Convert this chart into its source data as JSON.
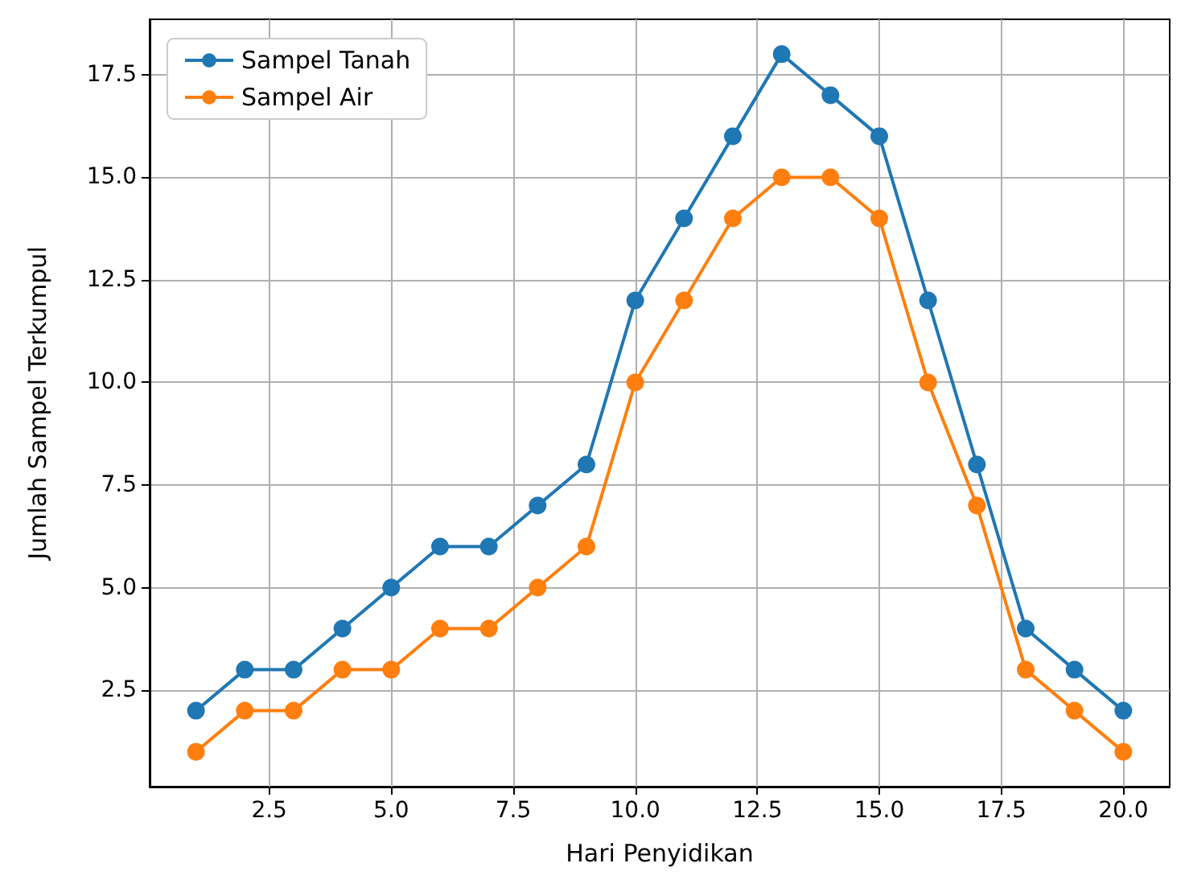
{
  "chart_data": {
    "type": "line",
    "xlabel": "Hari Penyidikan",
    "ylabel": "Jumlah Sampel Terkumpul",
    "x": [
      1,
      2,
      3,
      4,
      5,
      6,
      7,
      8,
      9,
      10,
      11,
      12,
      13,
      14,
      15,
      16,
      17,
      18,
      19,
      20
    ],
    "series": [
      {
        "name": "Sampel Tanah",
        "color": "#1f77b4",
        "values": [
          2,
          3,
          3,
          4,
          5,
          6,
          6,
          7,
          8,
          12,
          14,
          16,
          18,
          17,
          16,
          12,
          8,
          4,
          3,
          2
        ]
      },
      {
        "name": "Sampel Air",
        "color": "#ff7f0e",
        "values": [
          1,
          2,
          2,
          3,
          3,
          4,
          4,
          5,
          6,
          10,
          12,
          14,
          15,
          15,
          14,
          10,
          7,
          3,
          2,
          1
        ]
      }
    ],
    "xlim": [
      0.05,
      20.95
    ],
    "xticks": [
      2.5,
      {
        "value": 5,
        "label": "5.0"
      },
      7.5,
      {
        "value": 10,
        "label": "10.0"
      },
      12.5,
      {
        "value": 15,
        "label": "15.0"
      },
      17.5,
      {
        "value": 20,
        "label": "20.0"
      }
    ],
    "ylim": [
      0.15,
      18.85
    ],
    "yticks": [
      2.5,
      {
        "value": 5,
        "label": "5.0"
      },
      7.5,
      {
        "value": 10,
        "label": "10.0"
      },
      12.5,
      {
        "value": 15,
        "label": "15.0"
      },
      17.5
    ],
    "grid": true,
    "legend": "top left",
    "marker": "circle",
    "line_style": "solid"
  }
}
